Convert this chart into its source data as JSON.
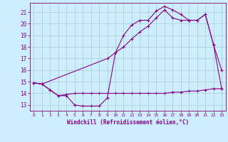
{
  "xlabel": "Windchill (Refroidissement éolien,°C)",
  "background_color": "#cceeff",
  "grid_color": "#aacccc",
  "line_color": "#880088",
  "xlim": [
    -0.5,
    23.5
  ],
  "ylim": [
    12.5,
    21.8
  ],
  "yticks": [
    13,
    14,
    15,
    16,
    17,
    18,
    19,
    20,
    21
  ],
  "xticks": [
    0,
    1,
    2,
    3,
    4,
    5,
    6,
    7,
    8,
    9,
    10,
    11,
    12,
    13,
    14,
    15,
    16,
    17,
    18,
    19,
    20,
    21,
    22,
    23
  ],
  "series1_x": [
    0,
    1,
    2,
    3,
    4,
    5,
    6,
    7,
    8,
    9,
    10,
    11,
    12,
    13,
    14,
    15,
    16,
    17,
    18,
    19,
    20,
    21,
    22,
    23
  ],
  "series1_y": [
    14.9,
    14.8,
    14.3,
    13.8,
    13.8,
    13.0,
    12.9,
    12.9,
    12.9,
    13.6,
    17.5,
    19.0,
    19.9,
    20.3,
    20.3,
    21.1,
    21.5,
    21.2,
    20.8,
    20.3,
    20.3,
    20.8,
    18.2,
    16.0
  ],
  "series2_x": [
    0,
    1,
    2,
    3,
    4,
    5,
    6,
    7,
    8,
    9,
    10,
    11,
    12,
    13,
    14,
    15,
    16,
    17,
    18,
    19,
    20,
    21,
    22,
    23
  ],
  "series2_y": [
    14.9,
    14.8,
    14.3,
    13.8,
    13.9,
    14.0,
    14.0,
    14.0,
    14.0,
    14.0,
    14.0,
    14.0,
    14.0,
    14.0,
    14.0,
    14.0,
    14.0,
    14.1,
    14.1,
    14.2,
    14.2,
    14.3,
    14.4,
    14.4
  ],
  "series3_x": [
    0,
    1,
    9,
    10,
    11,
    12,
    13,
    14,
    15,
    16,
    17,
    18,
    19,
    20,
    21,
    22,
    23
  ],
  "series3_y": [
    14.9,
    14.8,
    17.0,
    17.5,
    18.0,
    18.7,
    19.3,
    19.8,
    20.5,
    21.2,
    20.5,
    20.3,
    20.3,
    20.3,
    20.8,
    18.2,
    14.4
  ]
}
